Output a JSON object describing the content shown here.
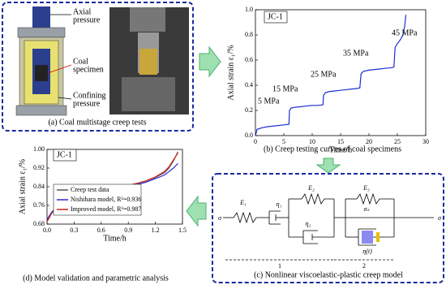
{
  "panel_a": {
    "caption": "(a) Coal multistage creep tests",
    "labels": [
      [
        "Axial",
        "pressure"
      ],
      [
        "Coal",
        "specimen"
      ],
      [
        "Confining",
        "pressure"
      ]
    ]
  },
  "chart_data": [
    {
      "type": "line",
      "label": "JC-1",
      "caption": "(b) Creep testing curves of coal specimens",
      "x_label": "Time/h",
      "y_label": "Axial strain ε₁/%",
      "annotations": [
        "5 MPa",
        "15 MPa",
        "25 MPa",
        "35 MPa",
        "45 MPa"
      ],
      "x": [
        0,
        0.3,
        1,
        2,
        3,
        4,
        5,
        5.9,
        6,
        6.3,
        7,
        8,
        9,
        10,
        11,
        11.9,
        12,
        12.3,
        13,
        14,
        15,
        16,
        17,
        18,
        18.4,
        18.6,
        19,
        20,
        21,
        22,
        23,
        24,
        24.4,
        24.6,
        25,
        25.5,
        26,
        26.3,
        26.5
      ],
      "series": [
        {
          "color": "#1f2fd0",
          "values": [
            0,
            0.05,
            0.06,
            0.07,
            0.075,
            0.08,
            0.085,
            0.09,
            0.2,
            0.22,
            0.225,
            0.23,
            0.235,
            0.24,
            0.24,
            0.245,
            0.32,
            0.34,
            0.35,
            0.355,
            0.36,
            0.365,
            0.37,
            0.375,
            0.38,
            0.49,
            0.51,
            0.52,
            0.525,
            0.53,
            0.535,
            0.54,
            0.545,
            0.7,
            0.73,
            0.76,
            0.8,
            0.87,
            0.96
          ]
        }
      ],
      "xlim": [
        0,
        30
      ],
      "ylim": [
        0,
        1
      ],
      "xticks": [
        0,
        5,
        10,
        15,
        20,
        25,
        30
      ],
      "yticks": [
        {
          "value": 0,
          "label": "0.0"
        },
        0.2,
        0.4,
        0.6,
        0.8,
        {
          "value": 1,
          "label": "1.0"
        }
      ]
    },
    {
      "type": "line",
      "label": "JC-1",
      "caption": "(d) Model validation and parametric analysis",
      "x_label": "Time/h",
      "y_label": "Axial strain ε₁/%",
      "x": [
        0,
        0.05,
        0.1,
        0.2,
        0.3,
        0.4,
        0.5,
        0.6,
        0.7,
        0.8,
        0.9,
        1.0,
        1.1,
        1.2,
        1.3,
        1.35,
        1.4,
        1.45
      ],
      "series": [
        {
          "name": "Creep test data",
          "color": "#555555",
          "values": [
            0.695,
            0.73,
            0.75,
            0.77,
            0.785,
            0.795,
            0.805,
            0.815,
            0.825,
            0.835,
            0.845,
            0.855,
            0.865,
            0.88,
            0.9,
            0.92,
            0.95,
            0.99
          ]
        },
        {
          "name": "Nishihara model, R²=0.936",
          "color": "#2a2ad0",
          "values": [
            0.7,
            0.73,
            0.75,
            0.77,
            0.78,
            0.79,
            0.8,
            0.81,
            0.82,
            0.83,
            0.84,
            0.85,
            0.86,
            0.875,
            0.89,
            0.905,
            0.92,
            0.94
          ]
        },
        {
          "name": "Improved model, R²=0.987",
          "color": "#d02020",
          "values": [
            0.69,
            0.725,
            0.75,
            0.77,
            0.785,
            0.795,
            0.805,
            0.815,
            0.825,
            0.835,
            0.845,
            0.855,
            0.866,
            0.882,
            0.905,
            0.925,
            0.955,
            0.985
          ]
        }
      ],
      "xlim": [
        0,
        1.5
      ],
      "ylim": [
        0.68,
        1
      ],
      "xticks": [
        {
          "value": 0,
          "label": "0.0"
        },
        0.3,
        0.6,
        0.9,
        1.2,
        1.5
      ],
      "yticks": [
        0.68,
        0.76,
        0.84,
        0.92,
        {
          "value": 1,
          "label": "1.00"
        }
      ]
    }
  ],
  "panel_c": {
    "caption": "(c) Nonlinear viscoelastic-plastic creep model",
    "labels": [
      "E₁",
      "η₁",
      "E₂",
      "η₂",
      "E₃",
      "σₛ",
      "η(t)",
      "σ",
      "σ",
      "1",
      "2"
    ]
  }
}
